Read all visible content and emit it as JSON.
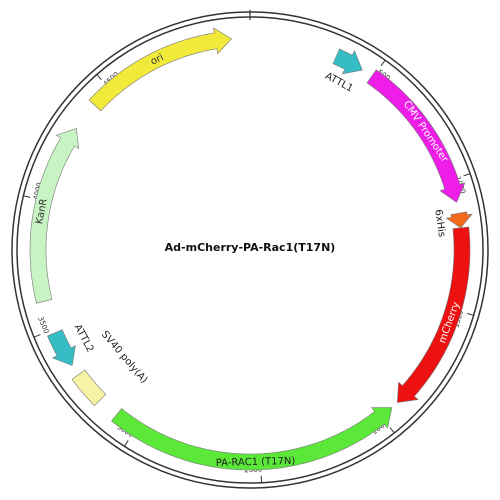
{
  "title": "Ad-mCherry-PA-Rac1(T17N)",
  "features": [
    {
      "label": "ori"
    },
    {
      "label": "ATTL1"
    },
    {
      "label": "CMV Promoter"
    },
    {
      "label": "6xHis"
    },
    {
      "label": "mCherry"
    },
    {
      "label": "PA-RAC1 (T17N)"
    },
    {
      "label": "SV40 poly(A)"
    },
    {
      "label": "ATTL2"
    },
    {
      "label": "KanR"
    }
  ],
  "ticks": [
    500,
    1000,
    1500,
    2000,
    2500,
    3000,
    3500,
    4000,
    4500
  ]
}
